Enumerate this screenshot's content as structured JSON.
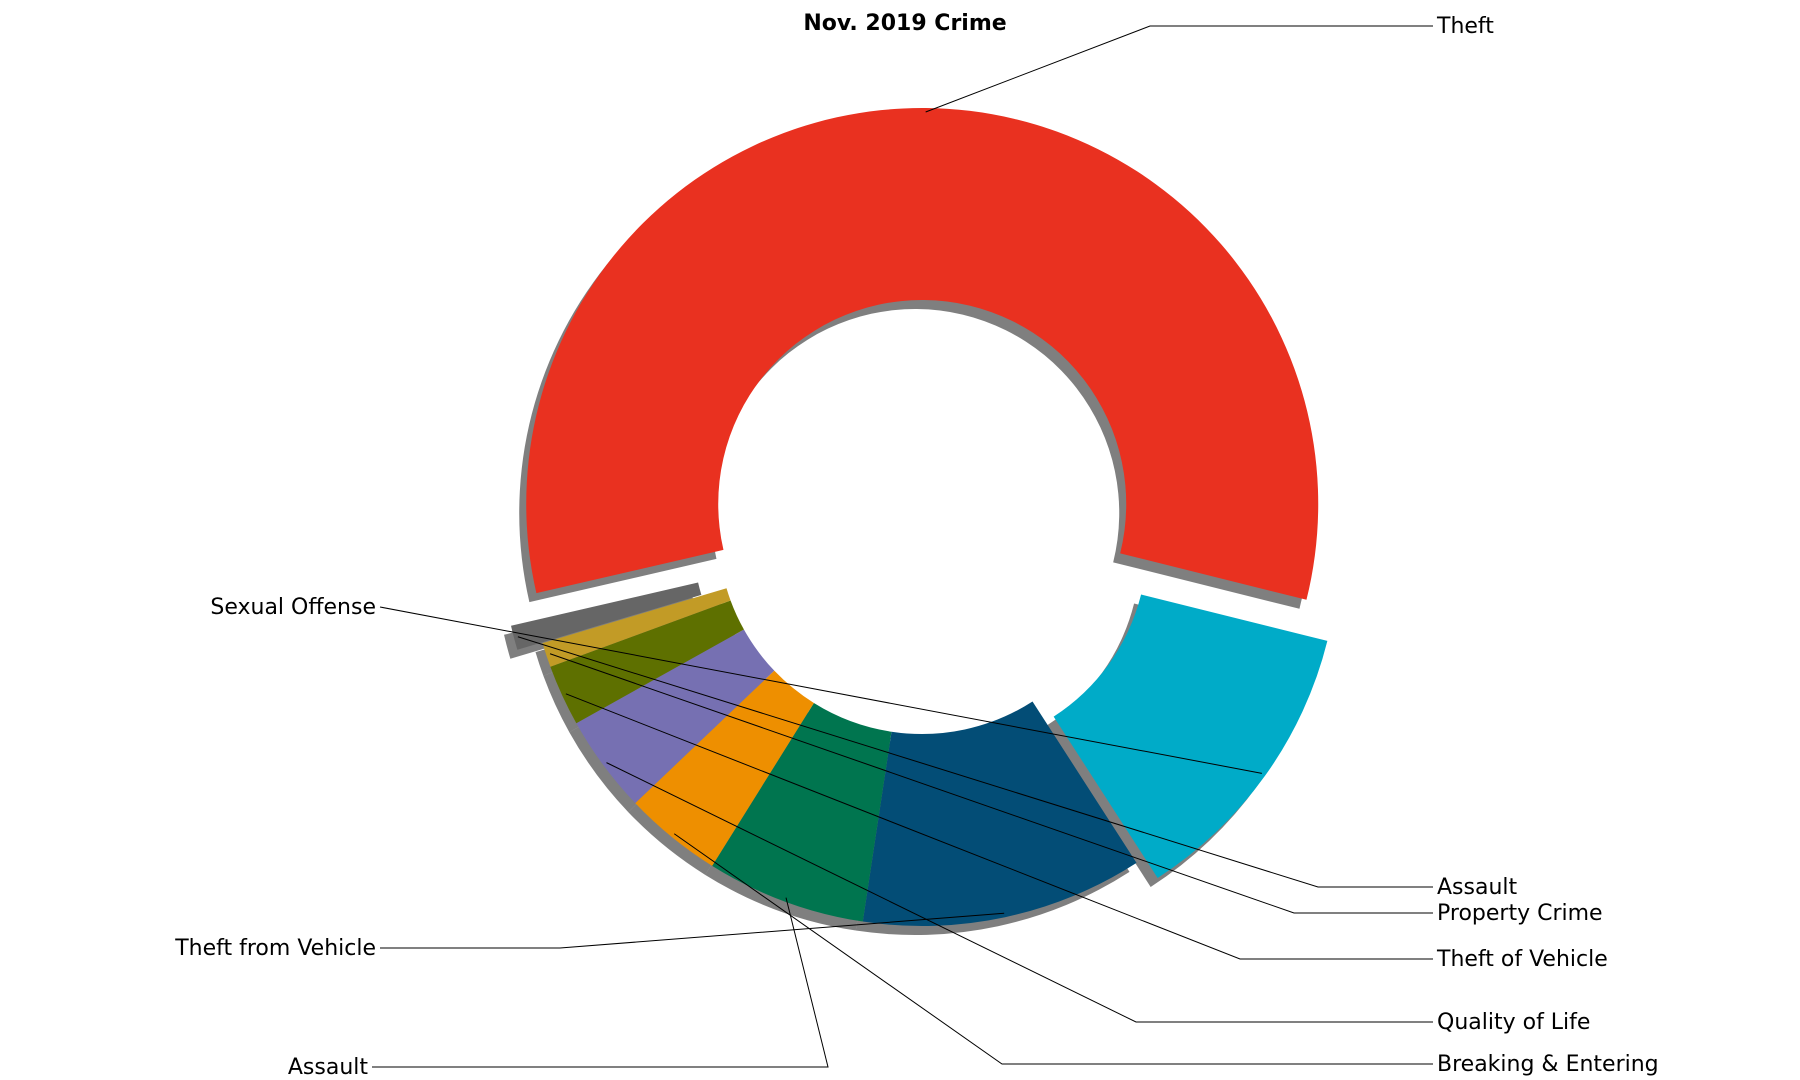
{
  "chart_data": {
    "type": "pie",
    "title": "Nov. 2019 Crime",
    "donut": true,
    "shadow": true,
    "slices": [
      {
        "label": "Theft",
        "value": 57.5,
        "color": "#e93120",
        "explode": true
      },
      {
        "label": "Sexual Offense",
        "value": 12.0,
        "color": "#00abc8",
        "explode": true
      },
      {
        "label": "Theft from Vehicle",
        "value": 11.5,
        "color": "#034d76",
        "explode": false
      },
      {
        "label": "Assault",
        "value": 6.5,
        "color": "#00754f",
        "explode": false
      },
      {
        "label": "Breaking & Entering",
        "value": 4.0,
        "color": "#ee8f00",
        "explode": false
      },
      {
        "label": "Quality of Life",
        "value": 4.0,
        "color": "#7670b2",
        "explode": false
      },
      {
        "label": "Theft of Vehicle",
        "value": 2.5,
        "color": "#5e7000",
        "explode": false
      },
      {
        "label": "Property Crime",
        "value": 1.0,
        "color": "#c29b26",
        "explode": false
      },
      {
        "label": "Assault",
        "value": 1.0,
        "color": "#666666",
        "explode": true
      }
    ]
  }
}
